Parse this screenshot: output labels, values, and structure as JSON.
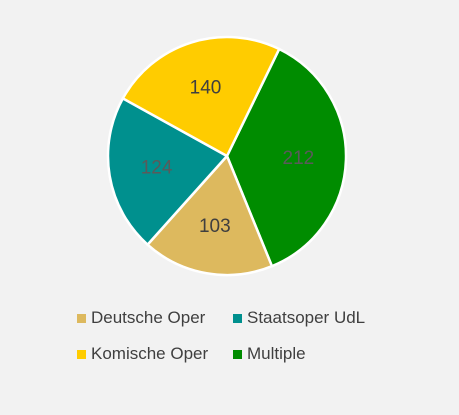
{
  "chart_data": {
    "type": "pie",
    "title": "",
    "legend_position": "bottom",
    "slices": [
      {
        "name": "Multiple",
        "value": 212,
        "color": "#008c00",
        "label_color": "#5a5a5a"
      },
      {
        "name": "Deutsche Oper",
        "value": 103,
        "color": "#ddb95e",
        "label_color": "#3f3f3f"
      },
      {
        "name": "Staatsoper UdL",
        "value": 124,
        "color": "#00908e",
        "label_color": "#5a5a5a"
      },
      {
        "name": "Komische Oper",
        "value": 140,
        "color": "#ffcc00",
        "label_color": "#3f3f3f"
      }
    ],
    "legend": [
      {
        "name": "Deutsche Oper",
        "color": "#ddb95e"
      },
      {
        "name": "Staatsoper UdL",
        "color": "#00908e"
      },
      {
        "name": "Komische Oper",
        "color": "#ffcc00"
      },
      {
        "name": "Multiple",
        "color": "#008c00"
      }
    ]
  }
}
